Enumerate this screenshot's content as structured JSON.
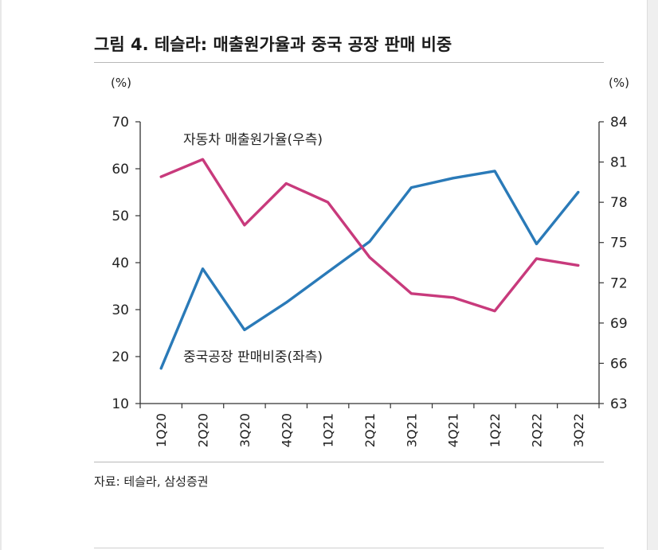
{
  "figure": {
    "title": "그림 4. 테슬라: 매출원가율과 중국 공장 판매 비중",
    "source": "자료: 테슬라, 삼성증권"
  },
  "chart_data": {
    "type": "line",
    "categories": [
      "1Q20",
      "2Q20",
      "3Q20",
      "4Q20",
      "1Q21",
      "2Q21",
      "3Q21",
      "4Q21",
      "1Q22",
      "2Q22",
      "3Q22"
    ],
    "y_left": {
      "unit": "(%)",
      "ylim": [
        10,
        70
      ],
      "ticks": [
        10,
        20,
        30,
        40,
        50,
        60,
        70
      ]
    },
    "y_right": {
      "unit": "(%)",
      "ylim": [
        63,
        84
      ],
      "ticks": [
        63,
        66,
        69,
        72,
        75,
        78,
        81,
        84
      ]
    },
    "grid": false,
    "series": [
      {
        "name": "중국공장 판매비중(좌측)",
        "axis": "left",
        "color": "#2a7ab8",
        "values": [
          17.5,
          38.7,
          25.7,
          31.5,
          38.0,
          44.5,
          56.0,
          58.0,
          59.5,
          44.0,
          55.0
        ]
      },
      {
        "name": "자동차 매출원가율(우측)",
        "axis": "right",
        "color": "#c83a7c",
        "values": [
          79.9,
          81.2,
          76.3,
          79.4,
          78.0,
          73.9,
          71.2,
          70.9,
          69.9,
          73.8,
          73.3
        ]
      }
    ]
  }
}
